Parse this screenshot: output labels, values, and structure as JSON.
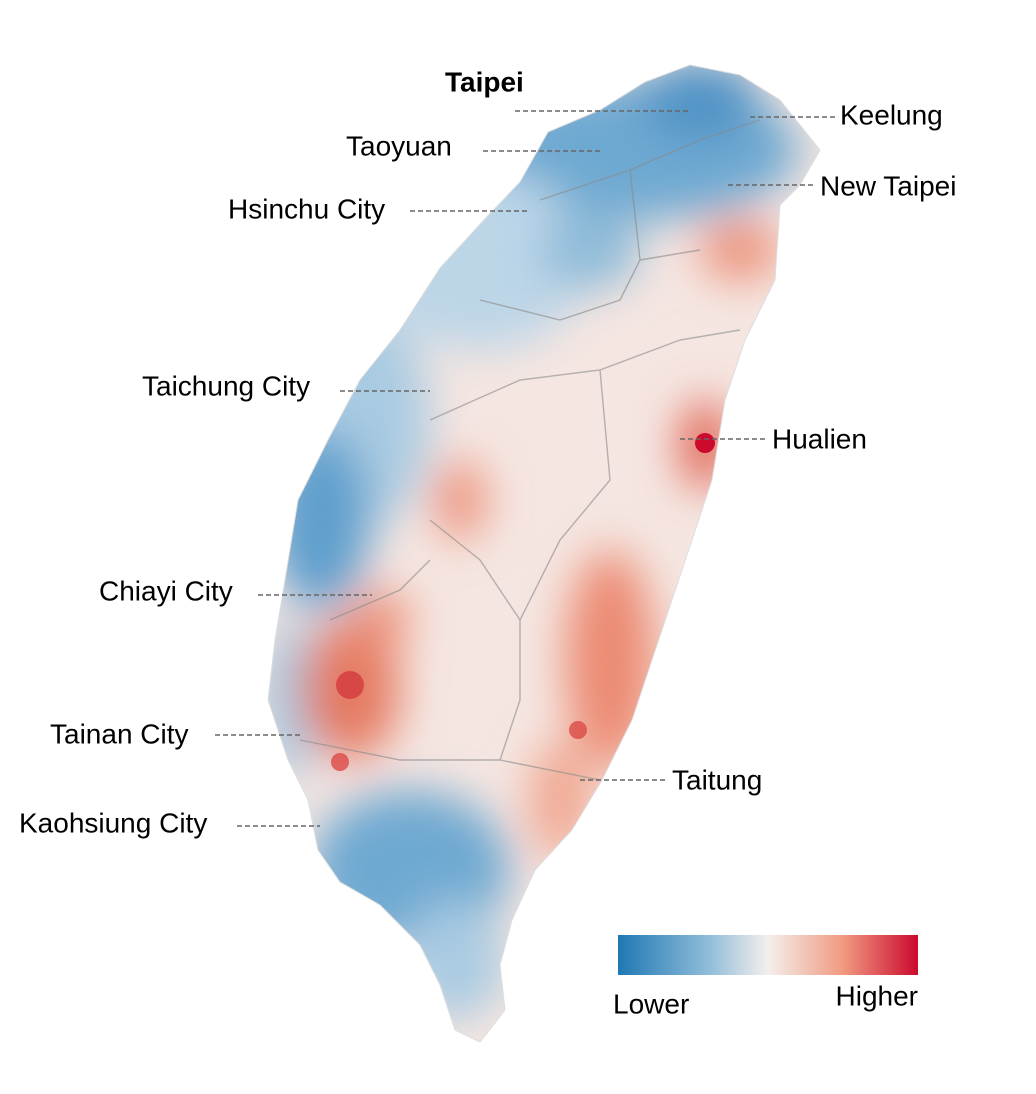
{
  "labels": [
    "Taipei",
    "Taoyuan",
    "Keelung",
    "New Taipei",
    "Hsinchu City",
    "Taichung City",
    "Hualien",
    "Chiayi City",
    "Tainan City",
    "Taitung",
    "Kaohsiung City"
  ],
  "legend": {
    "low": "Lower",
    "high": "Higher"
  }
}
